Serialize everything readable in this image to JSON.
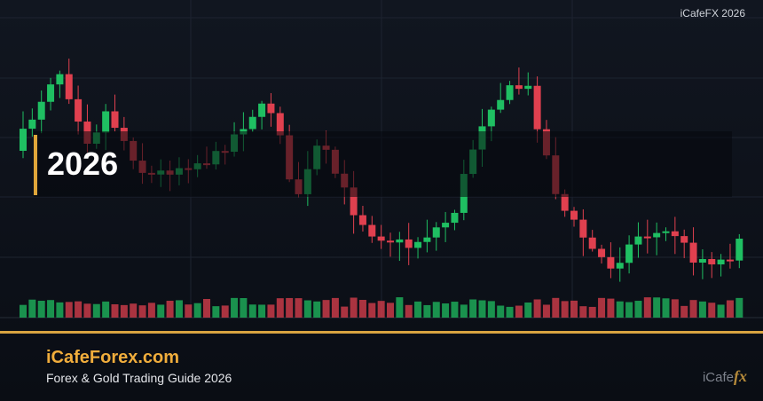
{
  "header": {
    "brand_mark": "iCafeFX 2026"
  },
  "overlay": {
    "year": "2026"
  },
  "footer": {
    "site": "iCafeForex.com",
    "subtitle": "Forex & Gold Trading Guide 2026",
    "logo_text": "iCafe",
    "logo_fx": "fx"
  }
}
